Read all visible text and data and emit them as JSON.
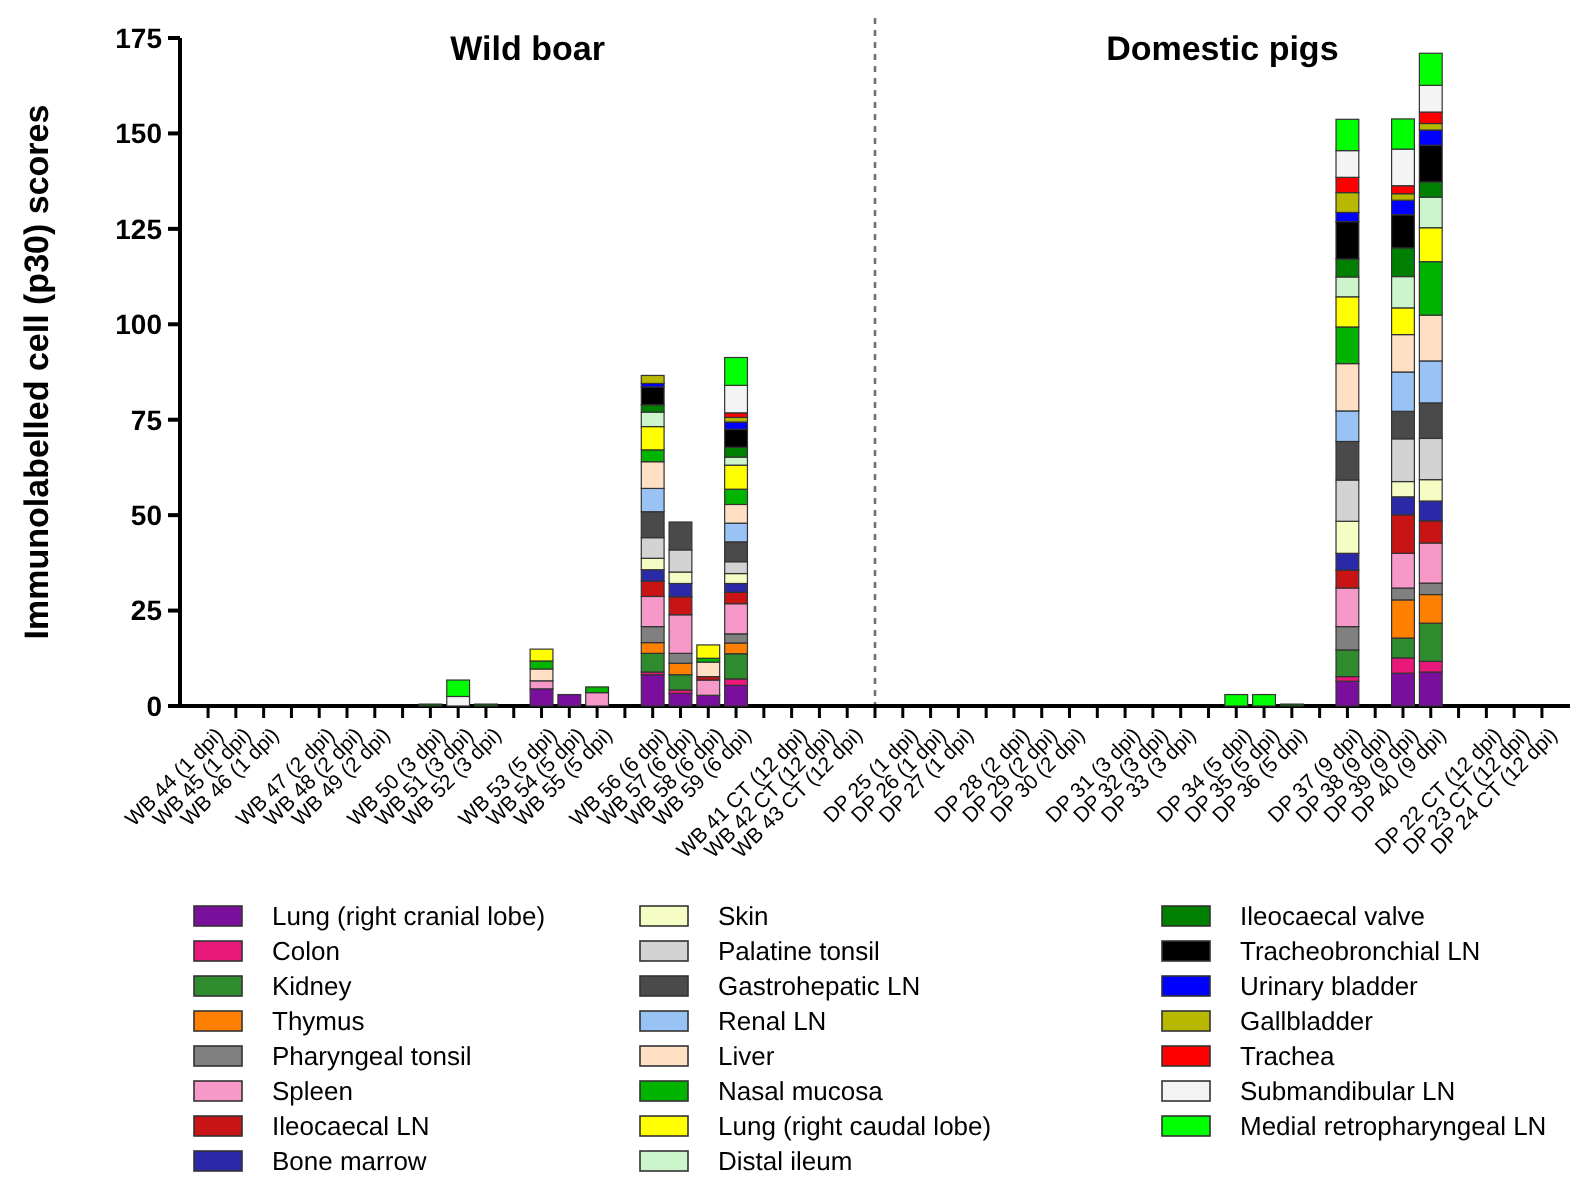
{
  "chart_data": {
    "type": "bar",
    "stacked": true,
    "ylabel": "Immunolabelled cell (p30) scores",
    "annotations": [
      "Wild boar",
      "Domestic pigs"
    ],
    "categories": [
      "WB 44 (1 dpi)",
      "WB 45 (1 dpi)",
      "WB 46 (1 dpi)",
      null,
      "WB 47 (2 dpi)",
      "WB 48 (2 dpi)",
      "WB 49 (2 dpi)",
      null,
      "WB 50 (3 dpi)",
      "WB 51 (3 dpi)",
      "WB 52 (3 dpi)",
      null,
      "WB 53 (5 dpi)",
      "WB 54 (5 dpi)",
      "WB 55 (5 dpi)",
      null,
      "WB 56 (6 dpi)",
      "WB 57 (6 dpi)",
      "WB 58 (6 dpi)",
      "WB 59 (6 dpi)",
      null,
      "WB 41 CT (12 dpi)",
      "WB 42 CT (12 dpi)",
      "WB 43 CT (12 dpi)",
      null,
      "DP 25 (1 dpi)",
      "DP 26 (1 dpi)",
      "DP 27 (1 dpi)",
      null,
      "DP 28 (2 dpi)",
      "DP 29 (2 dpi)",
      "DP 30 (2 dpi)",
      null,
      "DP 31 (3 dpi)",
      "DP 32 (3 dpi)",
      "DP 33 (3 dpi)",
      null,
      "DP 34 (5 dpi)",
      "DP 35 (5 dpi)",
      "DP 36 (5 dpi)",
      null,
      "DP 37 (9 dpi)",
      "DP 38 (9 dpi)",
      "DP 39 (9 dpi)",
      "DP 40 (9 dpi)",
      null,
      "DP 22 CT (12 dpi)",
      "DP 23 CT (12 dpi)",
      "DP 24 CT (12 dpi)"
    ],
    "ylim": [
      0,
      175
    ],
    "yticks": [
      0,
      25,
      50,
      75,
      100,
      125,
      150,
      175
    ],
    "legend": "bottom",
    "series": [
      {
        "name": "Lung (right cranial lobe)",
        "color": "#7a0f9e",
        "values": [
          0,
          0,
          0,
          null,
          0,
          0,
          0,
          null,
          0,
          0,
          0,
          null,
          4.5,
          3,
          0,
          null,
          8.2,
          3.3,
          2.8,
          5.4,
          null,
          0,
          0,
          0,
          null,
          0,
          0,
          0,
          null,
          0,
          0,
          0,
          null,
          0,
          0,
          0,
          null,
          0,
          0,
          0,
          null,
          6.5,
          0,
          8.6,
          8.9,
          null,
          0,
          0,
          0
        ]
      },
      {
        "name": "Colon",
        "color": "#e8197a",
        "values": [
          0,
          0,
          0,
          null,
          0,
          0,
          0,
          null,
          0,
          0,
          0,
          null,
          0,
          0,
          0,
          null,
          0.7,
          0.9,
          0,
          1.7,
          null,
          0,
          0,
          0,
          null,
          0,
          0,
          0,
          null,
          0,
          0,
          0,
          null,
          0,
          0,
          0,
          null,
          0,
          0,
          0,
          null,
          1.2,
          0,
          4,
          2.8,
          null,
          0,
          0,
          0
        ]
      },
      {
        "name": "Kidney",
        "color": "#2e8b2e",
        "values": [
          0,
          0,
          0,
          null,
          0,
          0,
          0,
          null,
          0,
          0,
          0,
          null,
          0,
          0,
          0,
          null,
          4.9,
          4,
          0,
          6.6,
          null,
          0,
          0,
          0,
          null,
          0,
          0,
          0,
          null,
          0,
          0,
          0,
          null,
          0,
          0,
          0,
          null,
          0,
          0,
          0,
          null,
          7,
          0,
          5.2,
          10,
          null,
          0,
          0,
          0
        ]
      },
      {
        "name": "Thymus",
        "color": "#ff8000",
        "values": [
          0,
          0,
          0,
          null,
          0,
          0,
          0,
          null,
          0,
          0,
          0,
          null,
          0,
          0,
          0,
          null,
          2.8,
          3,
          0,
          2.8,
          null,
          0,
          0,
          0,
          null,
          0,
          0,
          0,
          null,
          0,
          0,
          0,
          null,
          0,
          0,
          0,
          null,
          0,
          0,
          0,
          null,
          0,
          0,
          10,
          7.5,
          null,
          0,
          0,
          0
        ]
      },
      {
        "name": "Pharyngeal tonsil",
        "color": "#808080",
        "values": [
          0,
          0,
          0,
          null,
          0,
          0,
          0,
          null,
          0,
          0,
          0,
          null,
          0,
          0,
          0,
          null,
          4.2,
          2.6,
          0,
          2.4,
          null,
          0,
          0,
          0,
          null,
          0,
          0,
          0,
          null,
          0,
          0,
          0,
          null,
          0,
          0,
          0,
          null,
          0,
          0,
          0,
          null,
          6.1,
          0,
          3.1,
          3,
          null,
          0,
          0,
          0
        ]
      },
      {
        "name": "Spleen",
        "color": "#f799c8",
        "values": [
          0,
          0,
          0,
          null,
          0,
          0,
          0,
          null,
          0,
          0,
          0,
          null,
          2.1,
          0,
          3.5,
          null,
          7.9,
          10.1,
          4,
          7.9,
          null,
          0,
          0,
          0,
          null,
          0,
          0,
          0,
          null,
          0,
          0,
          0,
          null,
          0,
          0,
          0,
          null,
          0,
          0,
          0,
          null,
          10.1,
          0,
          9.1,
          10.5,
          null,
          0,
          0,
          0
        ]
      },
      {
        "name": "Ileocaecal LN",
        "color": "#c81414",
        "values": [
          0,
          0,
          0,
          null,
          0,
          0,
          0,
          null,
          0,
          0,
          0,
          null,
          0,
          0,
          0,
          null,
          4,
          4.7,
          0.9,
          3,
          null,
          0,
          0,
          0,
          null,
          0,
          0,
          0,
          null,
          0,
          0,
          0,
          null,
          0,
          0,
          0,
          null,
          0,
          0,
          0,
          null,
          4.7,
          0,
          10.1,
          5.8,
          null,
          0,
          0,
          0
        ]
      },
      {
        "name": "Bone marrow",
        "color": "#2a2aa8",
        "values": [
          0,
          0,
          0,
          null,
          0,
          0,
          0,
          null,
          0,
          0,
          0,
          null,
          0,
          0,
          0,
          null,
          3,
          3.5,
          0,
          2.3,
          null,
          0,
          0,
          0,
          null,
          0,
          0,
          0,
          null,
          0,
          0,
          0,
          null,
          0,
          0,
          0,
          null,
          0,
          0,
          0,
          null,
          4.4,
          0,
          4.7,
          5.2,
          null,
          0,
          0,
          0
        ]
      },
      {
        "name": "Skin",
        "color": "#f5fcc4",
        "values": [
          0,
          0,
          0,
          null,
          0,
          0,
          0,
          null,
          0,
          0,
          0,
          null,
          0,
          0,
          0,
          null,
          3,
          3,
          0,
          2.6,
          null,
          0,
          0,
          0,
          null,
          0,
          0,
          0,
          null,
          0,
          0,
          0,
          null,
          0,
          0,
          0,
          null,
          0,
          0,
          0,
          null,
          8.4,
          0,
          4,
          5.6,
          null,
          0,
          0,
          0
        ]
      },
      {
        "name": "Palatine tonsil",
        "color": "#d3d3d3",
        "values": [
          0,
          0,
          0,
          null,
          0,
          0,
          0,
          null,
          0,
          0,
          0,
          null,
          0,
          0,
          0,
          null,
          5.4,
          5.8,
          0,
          3.1,
          null,
          0,
          0,
          0,
          null,
          0,
          0,
          0,
          null,
          0,
          0,
          0,
          null,
          0,
          0,
          0,
          null,
          0,
          0,
          0,
          null,
          10.8,
          0,
          11.2,
          10.8,
          null,
          0,
          0,
          0
        ]
      },
      {
        "name": "Gastrohepatic LN",
        "color": "#4a4a4a",
        "values": [
          0,
          0,
          0,
          null,
          0,
          0,
          0,
          null,
          0,
          0,
          0,
          null,
          0,
          0,
          0,
          null,
          6.8,
          7.3,
          0,
          5.2,
          null,
          0,
          0,
          0,
          null,
          0,
          0,
          0,
          null,
          0,
          0,
          0,
          null,
          0,
          0,
          0,
          null,
          0,
          0,
          0,
          null,
          10.1,
          0,
          7.2,
          9.3,
          null,
          0,
          0,
          0
        ]
      },
      {
        "name": "Renal LN",
        "color": "#99c2f5",
        "values": [
          0,
          0,
          0,
          null,
          0,
          0,
          0,
          null,
          0,
          0,
          0,
          null,
          0,
          0,
          0,
          null,
          6.1,
          0,
          0,
          4.9,
          null,
          0,
          0,
          0,
          null,
          0,
          0,
          0,
          null,
          0,
          0,
          0,
          null,
          0,
          0,
          0,
          null,
          0,
          0,
          0,
          null,
          8,
          0,
          10.3,
          11,
          null,
          0,
          0,
          0
        ]
      },
      {
        "name": "Liver",
        "color": "#ffe0c4",
        "values": [
          0,
          0,
          0,
          null,
          0,
          0,
          0,
          null,
          0,
          0,
          0,
          null,
          3.1,
          0,
          0,
          null,
          7,
          0,
          3.8,
          4.9,
          null,
          0,
          0,
          0,
          null,
          0,
          0,
          0,
          null,
          0,
          0,
          0,
          null,
          0,
          0,
          0,
          null,
          0,
          0,
          0,
          null,
          12.4,
          0,
          9.8,
          12,
          null,
          0,
          0,
          0
        ]
      },
      {
        "name": "Nasal mucosa",
        "color": "#00b400",
        "values": [
          0,
          0,
          0,
          null,
          0,
          0,
          0,
          null,
          0,
          0,
          0,
          null,
          2.1,
          0,
          1.5,
          null,
          3.1,
          0,
          1,
          4,
          null,
          0,
          0,
          0,
          null,
          0,
          0,
          0,
          null,
          0,
          0,
          0,
          null,
          0,
          0,
          0,
          null,
          0,
          0,
          0,
          null,
          9.6,
          0,
          0,
          14,
          null,
          0,
          0,
          0
        ]
      },
      {
        "name": "Lung (right caudal lobe)",
        "color": "#ffff00",
        "values": [
          0,
          0,
          0,
          null,
          0,
          0,
          0,
          null,
          0,
          0,
          0,
          null,
          3.1,
          0,
          0,
          null,
          6.1,
          0,
          3.5,
          6.3,
          null,
          0,
          0,
          0,
          null,
          0,
          0,
          0,
          null,
          0,
          0,
          0,
          null,
          0,
          0,
          0,
          null,
          0,
          0,
          0,
          null,
          7.9,
          0,
          7,
          8.9,
          null,
          0,
          0,
          0
        ]
      },
      {
        "name": "Distal ileum",
        "color": "#ccf5cc",
        "values": [
          0,
          0,
          0,
          null,
          0,
          0,
          0,
          null,
          0,
          0,
          0,
          null,
          0,
          0,
          0,
          null,
          3.8,
          0,
          0,
          2.1,
          null,
          0,
          0,
          0,
          null,
          0,
          0,
          0,
          null,
          0,
          0,
          0,
          null,
          0,
          0,
          0,
          null,
          0,
          0,
          0,
          null,
          5.2,
          0,
          8.2,
          8,
          null,
          0,
          0,
          0
        ]
      },
      {
        "name": "Ileocaecal valve",
        "color": "#008000",
        "values": [
          0,
          0,
          0,
          null,
          0,
          0,
          0,
          null,
          0.5,
          0,
          0.5,
          null,
          0,
          0,
          0,
          null,
          1.9,
          0,
          0,
          2.6,
          null,
          0,
          0,
          0,
          null,
          0,
          0,
          0,
          null,
          0,
          0,
          0,
          null,
          0,
          0,
          0,
          null,
          0,
          0,
          0.5,
          null,
          4.7,
          0,
          7.5,
          4,
          null,
          0,
          0,
          0
        ]
      },
      {
        "name": "Tracheobronchial LN",
        "color": "#000000",
        "values": [
          0,
          0,
          0,
          null,
          0,
          0,
          0,
          null,
          0,
          0,
          0,
          null,
          0,
          0,
          0,
          null,
          4.7,
          0,
          0,
          4.7,
          null,
          0,
          0,
          0,
          null,
          0,
          0,
          0,
          null,
          0,
          0,
          0,
          null,
          0,
          0,
          0,
          null,
          0,
          0,
          0,
          null,
          9.8,
          0,
          8.7,
          9.6,
          null,
          0,
          0,
          0
        ]
      },
      {
        "name": "Urinary bladder",
        "color": "#0000ff",
        "values": [
          0,
          0,
          0,
          null,
          0,
          0,
          0,
          null,
          0,
          0,
          0,
          null,
          0,
          0,
          0,
          null,
          0.9,
          0,
          0,
          1.9,
          null,
          0,
          0,
          0,
          null,
          0,
          0,
          0,
          null,
          0,
          0,
          0,
          null,
          0,
          0,
          0,
          null,
          0,
          0,
          0,
          null,
          2.4,
          0,
          3.8,
          4,
          null,
          0,
          0,
          0
        ]
      },
      {
        "name": "Gallbladder",
        "color": "#b8b800",
        "values": [
          0,
          0,
          0,
          null,
          0,
          0,
          0,
          null,
          0,
          0,
          0,
          null,
          0,
          0,
          0,
          null,
          2.1,
          0,
          0,
          1.2,
          null,
          0,
          0,
          0,
          null,
          0,
          0,
          0,
          null,
          0,
          0,
          0,
          null,
          0,
          0,
          0,
          null,
          0,
          0,
          0,
          null,
          5.2,
          0,
          1.7,
          1.7,
          null,
          0,
          0,
          0
        ]
      },
      {
        "name": "Trachea",
        "color": "#ff0000",
        "values": [
          0,
          0,
          0,
          null,
          0,
          0,
          0,
          null,
          0,
          0,
          0,
          null,
          0,
          0,
          0,
          null,
          0,
          0,
          0,
          1.2,
          null,
          0,
          0,
          0,
          null,
          0,
          0,
          0,
          null,
          0,
          0,
          0,
          null,
          0,
          0,
          0,
          null,
          0,
          0,
          0,
          null,
          4,
          0,
          2.1,
          3,
          null,
          0,
          0,
          0
        ]
      },
      {
        "name": "Submandibular LN",
        "color": "#f4f4f4",
        "values": [
          0,
          0,
          0,
          null,
          0,
          0,
          0,
          null,
          0,
          2.5,
          0,
          null,
          0,
          0,
          0,
          null,
          0,
          0,
          0,
          7.2,
          null,
          0,
          0,
          0,
          null,
          0,
          0,
          0,
          null,
          0,
          0,
          0,
          null,
          0,
          0,
          0,
          null,
          0,
          0,
          0,
          null,
          7,
          0,
          9.6,
          7,
          null,
          0,
          0,
          0
        ]
      },
      {
        "name": "Medial retropharyngeal LN",
        "color": "#00ff00",
        "values": [
          0,
          0,
          0,
          null,
          0,
          0,
          0,
          null,
          0,
          4.3,
          0,
          null,
          0,
          0,
          0,
          null,
          0,
          0,
          0,
          7.3,
          null,
          0,
          0,
          0,
          null,
          0,
          0,
          0,
          null,
          0,
          0,
          0,
          null,
          0,
          0,
          0,
          null,
          3,
          3,
          0,
          null,
          8.2,
          0,
          7.9,
          8.4,
          null,
          0,
          0,
          0
        ]
      }
    ]
  }
}
